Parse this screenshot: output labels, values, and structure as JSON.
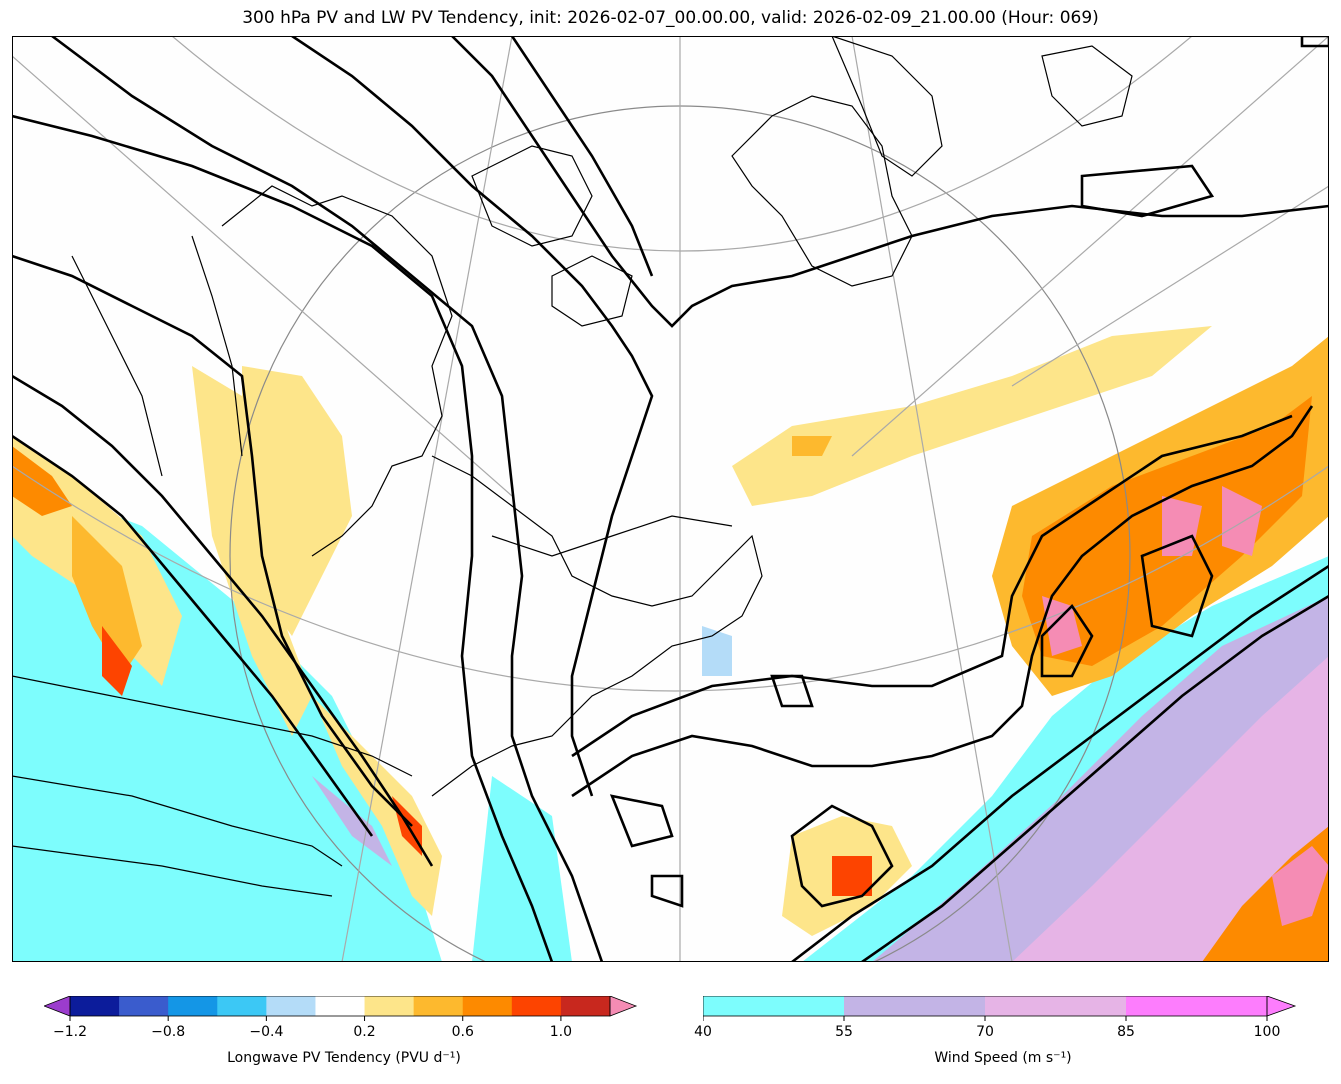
{
  "title": "300 hPa PV and LW PV Tendency, init: 2026-02-07_00.00.00, valid: 2026-02-09_21.00.00 (Hour: 069)",
  "colorbars": {
    "pv_tendency": {
      "label": "Longwave PV Tendency (PVU d⁻¹)",
      "ticks": [
        "−1.2",
        "−0.8",
        "−0.4",
        "0.2",
        "0.6",
        "1.0"
      ],
      "levels": [
        -1.2,
        -1.0,
        -0.8,
        -0.6,
        -0.4,
        -0.2,
        0.2,
        0.4,
        0.6,
        0.8,
        1.0,
        1.2
      ],
      "colors": [
        "#0c1c9b",
        "#3a5ccd",
        "#1496e6",
        "#3cc8f5",
        "#b4dcf8",
        "#ffffff",
        "#fde58a",
        "#fdb92e",
        "#fd8a00",
        "#fd4400",
        "#c8281e"
      ],
      "under_color": "#9b3ccd",
      "over_color": "#f58cb4"
    },
    "wind_speed": {
      "label": "Wind Speed (m s⁻¹)",
      "ticks": [
        "40",
        "55",
        "70",
        "85",
        "100"
      ],
      "colors": [
        "#7dfdfd",
        "#c3b4e6",
        "#e6b4e6",
        "#fd7dfd"
      ],
      "over_color": "#fd7dfd"
    }
  }
}
